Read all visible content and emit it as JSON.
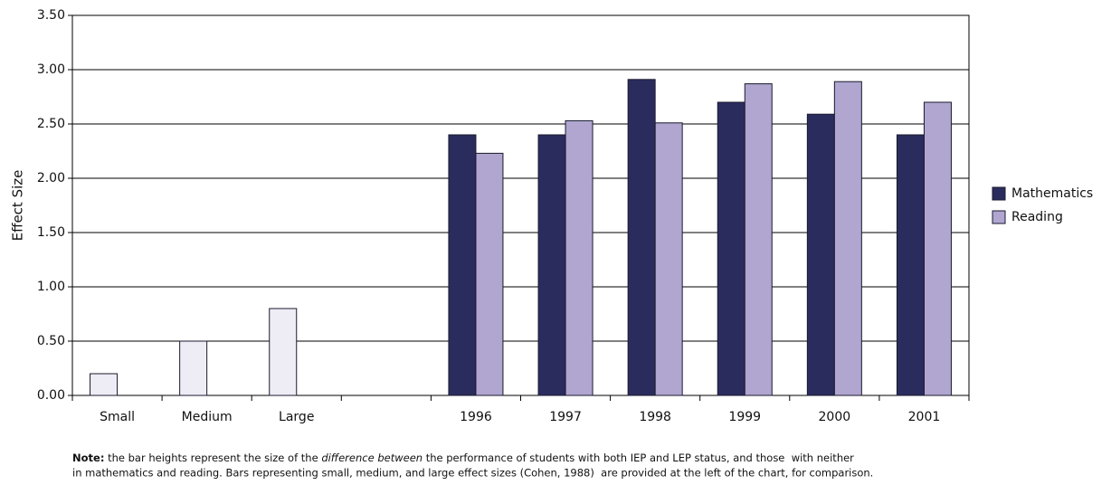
{
  "chart_data": {
    "type": "bar",
    "y_label": "Effect Size",
    "categories": [
      "Small",
      "Medium",
      "Large",
      null,
      "1996",
      "1997",
      "1998",
      "1999",
      "2000",
      "2001"
    ],
    "series": [
      {
        "color": "#eeedf6",
        "values": [
          0.2,
          0.5,
          0.8,
          null,
          null,
          null,
          null,
          null,
          null,
          null
        ]
      },
      {
        "name": "Mathematics",
        "color": "#2b2c5e",
        "values": [
          null,
          null,
          null,
          null,
          2.4,
          2.4,
          2.91,
          2.7,
          2.59,
          2.4
        ]
      },
      {
        "name": "Reading",
        "color": "#b0a6d0",
        "values": [
          null,
          null,
          null,
          null,
          2.23,
          2.53,
          2.51,
          2.87,
          2.89,
          2.7
        ]
      }
    ],
    "ylim": [
      0,
      3.5
    ],
    "yticks": [
      {
        "value": 0,
        "label": "0.00"
      },
      {
        "value": 0.5,
        "label": "0.50"
      },
      {
        "value": 1,
        "label": "1.00"
      },
      {
        "value": 1.5,
        "label": "1.50"
      },
      {
        "value": 2,
        "label": "2.00"
      },
      {
        "value": 2.5,
        "label": "2.50"
      },
      {
        "value": 3,
        "label": "3.00"
      },
      {
        "value": 3.5,
        "label": "3.50"
      }
    ],
    "grid": true,
    "legend": "right",
    "note": {
      "label": "Note:",
      "text_1": " the bar heights represent the size of the ",
      "emphasis": "difference between",
      "text_2": " the performance of students with both IEP and LEP status, and those  with neither",
      "text_3": "in mathematics and reading. Bars representing small, medium, and large effect sizes (Cohen, 1988)  are provided at the left of the chart, for comparison."
    }
  }
}
